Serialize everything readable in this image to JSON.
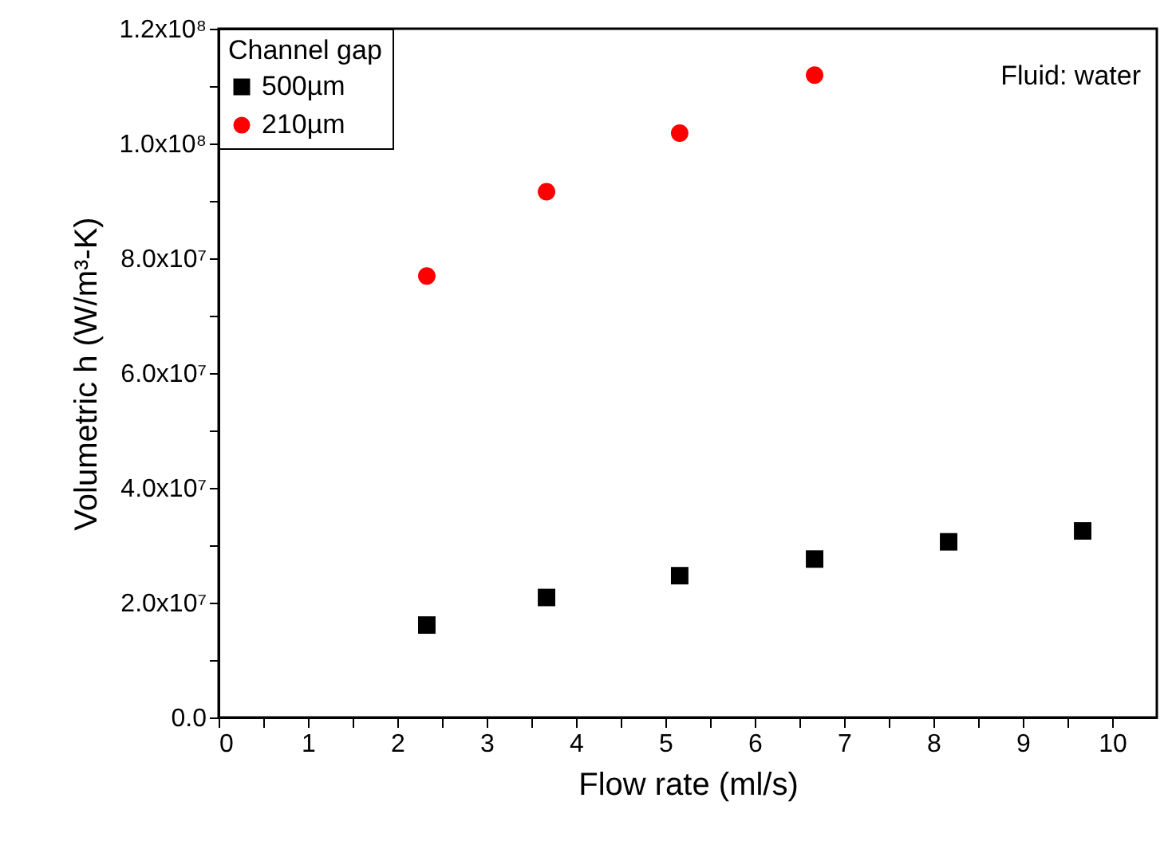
{
  "chart_data": {
    "type": "scatter",
    "xlabel": "Flow rate (ml/s)",
    "ylabel": "Volumetric h (W/m³-K)",
    "legend_title": "Channel gap",
    "legend": "top left",
    "grid": false,
    "annotations": [
      "Fluid: water"
    ],
    "xlim": [
      0,
      10.5
    ],
    "xticks": [
      0,
      {
        "value": 0.5,
        "label": null
      },
      1,
      {
        "value": 1.5,
        "label": null
      },
      2,
      {
        "value": 2.5,
        "label": null
      },
      3,
      {
        "value": 3.5,
        "label": null
      },
      4,
      {
        "value": 4.5,
        "label": null
      },
      5,
      {
        "value": 5.5,
        "label": null
      },
      6,
      {
        "value": 6.5,
        "label": null
      },
      7,
      {
        "value": 7.5,
        "label": null
      },
      8,
      {
        "value": 8.5,
        "label": null
      },
      9,
      {
        "value": 9.5,
        "label": null
      },
      10
    ],
    "ylim": [
      0,
      120000000
    ],
    "yticks": [
      {
        "value": 0,
        "label": "0.0"
      },
      {
        "value": 10000000,
        "label": null
      },
      {
        "value": 20000000,
        "label": "2.0x10⁷"
      },
      {
        "value": 30000000,
        "label": null
      },
      {
        "value": 40000000,
        "label": "4.0x10⁷"
      },
      {
        "value": 50000000,
        "label": null
      },
      {
        "value": 60000000,
        "label": "6.0x10⁷"
      },
      {
        "value": 70000000,
        "label": null
      },
      {
        "value": 80000000,
        "label": "8.0x10⁷"
      },
      {
        "value": 90000000,
        "label": null
      },
      {
        "value": 100000000,
        "label": "1.0x10⁸"
      },
      {
        "value": 110000000,
        "label": null
      },
      {
        "value": 120000000,
        "label": "1.2x10⁸"
      }
    ],
    "series": [
      {
        "name": "500µm",
        "color": "#000000",
        "marker": "square",
        "x": [
          2.33,
          3.67,
          5.16,
          6.67,
          8.17,
          9.67
        ],
        "values": [
          16100000,
          20900000,
          24700000,
          27600000,
          30600000,
          32500000
        ]
      },
      {
        "name": "210µm",
        "color": "#ff0000",
        "marker": "circle",
        "x": [
          2.33,
          3.67,
          5.16,
          6.67
        ],
        "values": [
          76900000,
          91600000,
          101800000,
          111900000
        ]
      }
    ]
  }
}
